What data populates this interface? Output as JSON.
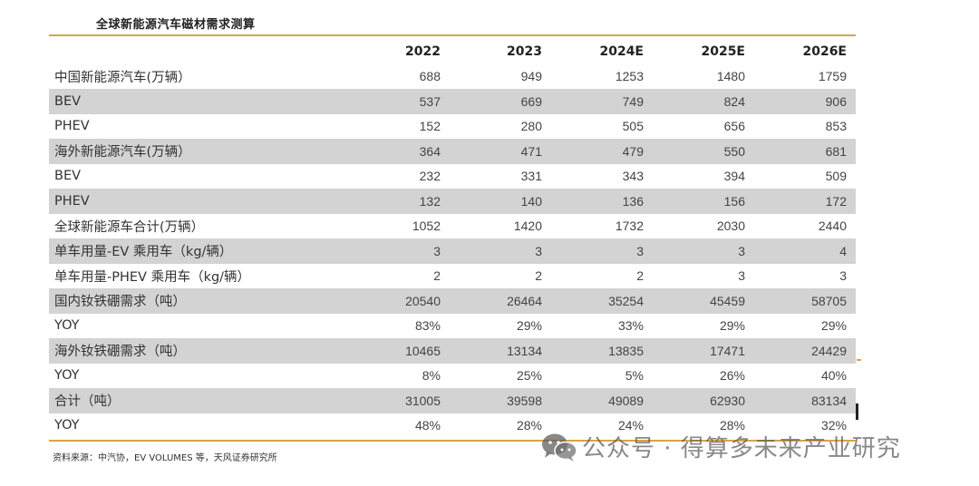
{
  "title": "全球新能源汽车磁材需求测算",
  "header": [
    "",
    "2022",
    "2023",
    "2024E",
    "2025E",
    "2026E"
  ],
  "rows": [
    {
      "label": "中国新能源汽车(万辆）",
      "values": [
        "688",
        "949",
        "1253",
        "1480",
        "1759"
      ],
      "shaded": false
    },
    {
      "label": "BEV",
      "values": [
        "537",
        "669",
        "749",
        "824",
        "906"
      ],
      "shaded": true
    },
    {
      "label": "PHEV",
      "values": [
        "152",
        "280",
        "505",
        "656",
        "853"
      ],
      "shaded": false
    },
    {
      "label": "海外新能源汽车(万辆）",
      "values": [
        "364",
        "471",
        "479",
        "550",
        "681"
      ],
      "shaded": true
    },
    {
      "label": "BEV",
      "values": [
        "232",
        "331",
        "343",
        "394",
        "509"
      ],
      "shaded": false
    },
    {
      "label": "PHEV",
      "values": [
        "132",
        "140",
        "136",
        "156",
        "172"
      ],
      "shaded": true
    },
    {
      "label": "全球新能源车合计(万辆）",
      "values": [
        "1052",
        "1420",
        "1732",
        "2030",
        "2440"
      ],
      "shaded": false
    },
    {
      "label": "单车用量-EV 乘用车（kg/辆）",
      "values": [
        "3",
        "3",
        "3",
        "3",
        "4"
      ],
      "shaded": true
    },
    {
      "label": "单车用量-PHEV 乘用车（kg/辆）",
      "values": [
        "2",
        "2",
        "2",
        "3",
        "3"
      ],
      "shaded": false
    },
    {
      "label": "国内钕铁硼需求（吨）",
      "values": [
        "20540",
        "26464",
        "35254",
        "45459",
        "58705"
      ],
      "shaded": true
    },
    {
      "label": "YOY",
      "values": [
        "83%",
        "29%",
        "33%",
        "29%",
        "29%"
      ],
      "shaded": false
    },
    {
      "label": "海外钕铁硼需求（吨）",
      "values": [
        "10465",
        "13134",
        "13835",
        "17471",
        "24429"
      ],
      "shaded": true
    },
    {
      "label": "YOY",
      "values": [
        "8%",
        "25%",
        "5%",
        "26%",
        "40%"
      ],
      "shaded": false
    },
    {
      "label": "合计（吨）",
      "values": [
        "31005",
        "39598",
        "49089",
        "62930",
        "83134"
      ],
      "shaded": true
    },
    {
      "label": "YOY",
      "values": [
        "48%",
        "28%",
        "24%",
        "28%",
        "32%"
      ],
      "shaded": false
    }
  ],
  "source": "资料来源：中汽协，EV VOLUMES 等，天风证券研究所",
  "watermark": {
    "text": "公众号 · 得算多未来产业研究",
    "icon": "wechat-icon"
  },
  "colors": {
    "accent": "#d8a44a",
    "shade": "#d3d3d3"
  }
}
